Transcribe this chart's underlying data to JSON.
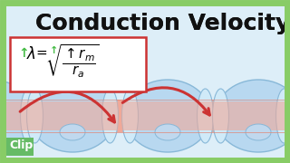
{
  "title": "Conduction Velocity",
  "background_color": "#ddeef8",
  "border_color": "#88cc66",
  "title_color": "#111111",
  "title_fontsize": 18,
  "clip_text": "Clip",
  "clip_color": "#ffffff",
  "clip_bg": "#66bb66",
  "clip_fontsize": 9,
  "axon_color": "#f0a898",
  "axon_edge_color": "#e08878",
  "myelin_color": "#b8d8f0",
  "myelin_edge_color": "#88b8d8",
  "node_color": "#d0eaf8",
  "formula_box_color": "#ffffff",
  "formula_border_color": "#cc3333",
  "arrow_color": "#cc3333",
  "green_color": "#44bb44",
  "highlight_color": "#c0d8ee"
}
